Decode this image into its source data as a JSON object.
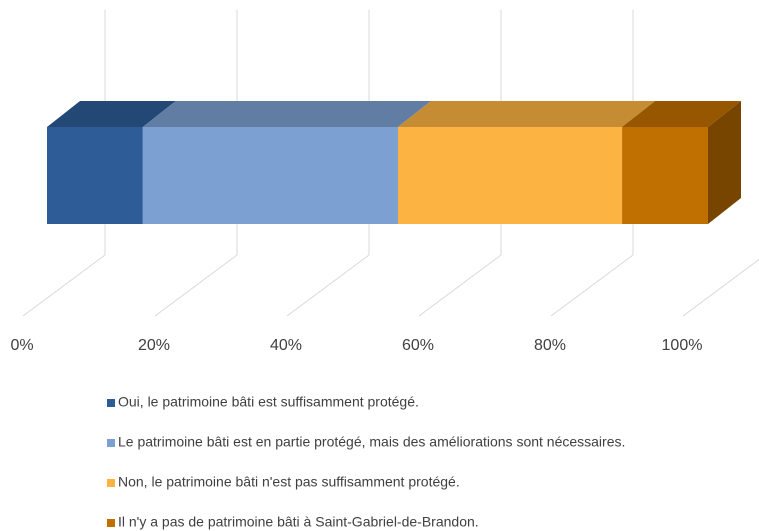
{
  "chart_data": {
    "type": "bar",
    "orientation": "horizontal",
    "stacked": true,
    "categories": [
      null
    ],
    "series": [
      {
        "name": "Oui, le patrimoine bâti est suffisamment protégé.",
        "color": "#2e5c96",
        "values": [
          14.5
        ]
      },
      {
        "name": "Le patrimoine bâti est en partie protégé, mais des améliorations sont nécessaires.",
        "color": "#7da0d2",
        "values": [
          38.6
        ]
      },
      {
        "name": "Non, le patrimoine bâti n'est pas suffisamment protégé.",
        "color": "#fdb341",
        "values": [
          33.9
        ]
      },
      {
        "name": "Il n'y a pas de patrimoine bâti à Saint-Gabriel-de-Brandon.",
        "color": "#c07000",
        "values": [
          13.0
        ]
      }
    ],
    "xlim": [
      0,
      100
    ],
    "xticks": [
      {
        "value": 0,
        "label": "0%"
      },
      {
        "value": 20,
        "label": "20%"
      },
      {
        "value": 40,
        "label": "40%"
      },
      {
        "value": 60,
        "label": "60%"
      },
      {
        "value": 80,
        "label": "80%"
      },
      {
        "value": 100,
        "label": "100%"
      }
    ],
    "grid": true,
    "legend": "bottom"
  }
}
